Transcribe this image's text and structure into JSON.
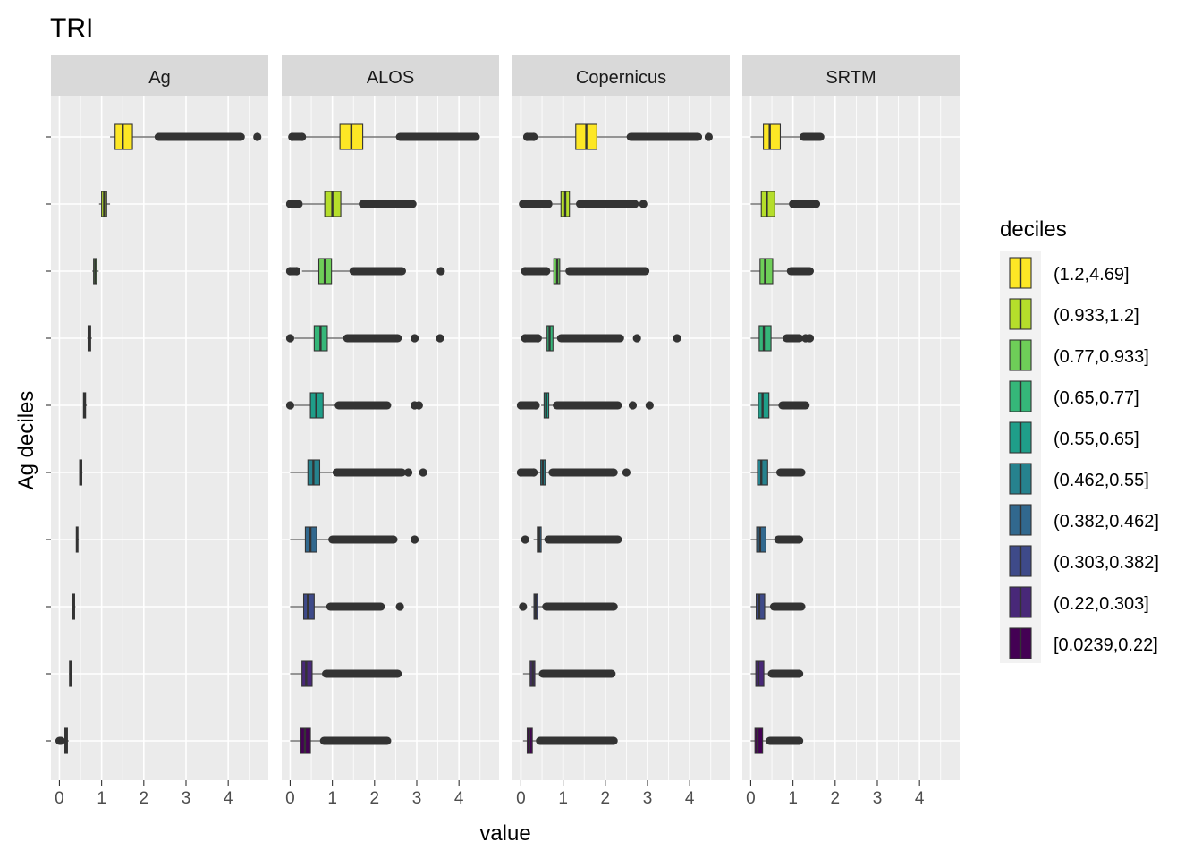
{
  "chart_data": {
    "type": "boxplot",
    "orientation": "horizontal",
    "title": "TRI",
    "xlabel": "value",
    "ylabel": "Ag deciles",
    "xlim": [
      -0.2,
      4.95
    ],
    "x_ticks": [
      0,
      1,
      2,
      3,
      4
    ],
    "legend": {
      "title": "deciles",
      "position": "right",
      "entries": [
        {
          "label": "(1.2,4.69]",
          "color": "#FDE725"
        },
        {
          "label": "(0.933,1.2]",
          "color": "#B5DE2B"
        },
        {
          "label": "(0.77,0.933]",
          "color": "#6ECE58"
        },
        {
          "label": "(0.65,0.77]",
          "color": "#35B779"
        },
        {
          "label": "(0.55,0.65]",
          "color": "#1F9E89"
        },
        {
          "label": "(0.462,0.55]",
          "color": "#26828E"
        },
        {
          "label": "(0.382,0.462]",
          "color": "#31688E"
        },
        {
          "label": "(0.303,0.382]",
          "color": "#3E4A89"
        },
        {
          "label": "(0.22,0.303]",
          "color": "#482878"
        },
        {
          "label": "[0.0239,0.22]",
          "color": "#440154"
        }
      ]
    },
    "facets": [
      {
        "name": "Ag",
        "boxes": [
          {
            "decile": "(1.2,4.69]",
            "whisker_low": 1.2,
            "q1": 1.32,
            "median": 1.5,
            "q3": 1.73,
            "whisker_high": 2.35,
            "outlier_band": [
              2.35,
              4.3
            ],
            "outliers": [
              4.69
            ]
          },
          {
            "decile": "(0.933,1.2]",
            "whisker_low": 0.94,
            "q1": 1.0,
            "median": 1.06,
            "q3": 1.12,
            "whisker_high": 1.2,
            "outlier_band": [],
            "outliers": []
          },
          {
            "decile": "(0.77,0.933]",
            "whisker_low": 0.78,
            "q1": 0.81,
            "median": 0.85,
            "q3": 0.89,
            "whisker_high": 0.93,
            "outlier_band": [],
            "outliers": []
          },
          {
            "decile": "(0.65,0.77]",
            "whisker_low": 0.66,
            "q1": 0.68,
            "median": 0.71,
            "q3": 0.74,
            "whisker_high": 0.77,
            "outlier_band": [],
            "outliers": []
          },
          {
            "decile": "(0.55,0.65]",
            "whisker_low": 0.56,
            "q1": 0.57,
            "median": 0.6,
            "q3": 0.62,
            "whisker_high": 0.65,
            "outlier_band": [],
            "outliers": []
          },
          {
            "decile": "(0.462,0.55]",
            "whisker_low": 0.47,
            "q1": 0.48,
            "median": 0.51,
            "q3": 0.53,
            "whisker_high": 0.55,
            "outlier_band": [],
            "outliers": []
          },
          {
            "decile": "(0.382,0.462]",
            "whisker_low": 0.39,
            "q1": 0.4,
            "median": 0.42,
            "q3": 0.44,
            "whisker_high": 0.46,
            "outlier_band": [],
            "outliers": []
          },
          {
            "decile": "(0.303,0.382]",
            "whisker_low": 0.31,
            "q1": 0.32,
            "median": 0.34,
            "q3": 0.36,
            "whisker_high": 0.38,
            "outlier_band": [],
            "outliers": []
          },
          {
            "decile": "(0.22,0.303]",
            "whisker_low": 0.23,
            "q1": 0.24,
            "median": 0.26,
            "q3": 0.28,
            "whisker_high": 0.3,
            "outlier_band": [],
            "outliers": []
          },
          {
            "decile": "[0.0239,0.22]",
            "whisker_low": 0.12,
            "q1": 0.13,
            "median": 0.16,
            "q3": 0.19,
            "whisker_high": 0.22,
            "outlier_band": [
              0.0,
              0.04
            ],
            "outliers": []
          }
        ]
      },
      {
        "name": "ALOS",
        "boxes": [
          {
            "decile": "(1.2,4.69]",
            "whisker_low": 0.3,
            "q1": 1.18,
            "median": 1.45,
            "q3": 1.72,
            "whisker_high": 2.6,
            "outlier_band": [
              2.6,
              4.4
            ],
            "outliers": [
              0.05,
              0.28
            ]
          },
          {
            "decile": "(0.933,1.2]",
            "whisker_low": 0.3,
            "q1": 0.82,
            "median": 1.0,
            "q3": 1.2,
            "whisker_high": 1.72,
            "outlier_band": [
              1.72,
              2.9
            ],
            "outliers": [
              0.0,
              0.2
            ]
          },
          {
            "decile": "(0.77,0.933]",
            "whisker_low": 0.28,
            "q1": 0.68,
            "median": 0.82,
            "q3": 0.98,
            "whisker_high": 1.5,
            "outlier_band": [
              1.5,
              2.65
            ],
            "outliers": [
              0.0,
              0.15,
              3.57
            ]
          },
          {
            "decile": "(0.65,0.77]",
            "whisker_low": 0.1,
            "q1": 0.57,
            "median": 0.72,
            "q3": 0.88,
            "whisker_high": 1.35,
            "outlier_band": [
              1.35,
              2.55
            ],
            "outliers": [
              0.0,
              2.95,
              3.55
            ]
          },
          {
            "decile": "(0.55,0.65]",
            "whisker_low": 0.1,
            "q1": 0.48,
            "median": 0.62,
            "q3": 0.78,
            "whisker_high": 1.15,
            "outlier_band": [
              1.15,
              2.3
            ],
            "outliers": [
              0.0,
              2.95,
              3.05
            ]
          },
          {
            "decile": "(0.462,0.55]",
            "whisker_low": 0.0,
            "q1": 0.42,
            "median": 0.55,
            "q3": 0.7,
            "whisker_high": 1.1,
            "outlier_band": [
              1.1,
              2.65
            ],
            "outliers": [
              2.8,
              3.15
            ]
          },
          {
            "decile": "(0.382,0.462]",
            "whisker_low": 0.0,
            "q1": 0.36,
            "median": 0.48,
            "q3": 0.63,
            "whisker_high": 1.0,
            "outlier_band": [
              1.0,
              2.45
            ],
            "outliers": [
              2.95
            ]
          },
          {
            "decile": "(0.303,0.382]",
            "whisker_low": 0.0,
            "q1": 0.32,
            "median": 0.42,
            "q3": 0.57,
            "whisker_high": 0.95,
            "outlier_band": [
              0.95,
              2.15
            ],
            "outliers": [
              2.6
            ]
          },
          {
            "decile": "(0.22,0.303]",
            "whisker_low": 0.0,
            "q1": 0.28,
            "median": 0.38,
            "q3": 0.52,
            "whisker_high": 0.85,
            "outlier_band": [
              0.85,
              2.55
            ],
            "outliers": []
          },
          {
            "decile": "[0.0239,0.22]",
            "whisker_low": 0.0,
            "q1": 0.25,
            "median": 0.35,
            "q3": 0.48,
            "whisker_high": 0.8,
            "outlier_band": [
              0.8,
              2.3
            ],
            "outliers": []
          }
        ]
      },
      {
        "name": "Copernicus",
        "boxes": [
          {
            "decile": "(1.2,4.69]",
            "whisker_low": 0.35,
            "q1": 1.3,
            "median": 1.55,
            "q3": 1.8,
            "whisker_high": 2.6,
            "outlier_band": [
              2.6,
              4.2
            ],
            "outliers": [
              0.15,
              0.3,
              4.45
            ]
          },
          {
            "decile": "(0.933,1.2]",
            "whisker_low": 0.7,
            "q1": 0.95,
            "median": 1.05,
            "q3": 1.15,
            "whisker_high": 1.4,
            "outlier_band": [
              1.4,
              2.7
            ],
            "outliers": [
              0.05,
              0.65,
              2.9
            ]
          },
          {
            "decile": "(0.77,0.933]",
            "whisker_low": 0.7,
            "q1": 0.78,
            "median": 0.86,
            "q3": 0.92,
            "whisker_high": 1.15,
            "outlier_band": [
              1.15,
              2.95
            ],
            "outliers": [
              0.1,
              0.6
            ]
          },
          {
            "decile": "(0.65,0.77]",
            "whisker_low": 0.5,
            "q1": 0.62,
            "median": 0.68,
            "q3": 0.76,
            "whisker_high": 0.95,
            "outlier_band": [
              0.95,
              2.35
            ],
            "outliers": [
              0.1,
              0.4,
              2.75,
              3.7
            ]
          },
          {
            "decile": "(0.55,0.65]",
            "whisker_low": 0.48,
            "q1": 0.55,
            "median": 0.6,
            "q3": 0.66,
            "whisker_high": 0.85,
            "outlier_band": [
              0.85,
              2.3
            ],
            "outliers": [
              0.0,
              0.35,
              2.65,
              3.05
            ]
          },
          {
            "decile": "(0.462,0.55]",
            "whisker_low": 0.4,
            "q1": 0.47,
            "median": 0.52,
            "q3": 0.58,
            "whisker_high": 0.75,
            "outlier_band": [
              0.75,
              2.2
            ],
            "outliers": [
              0.0,
              0.3,
              2.5
            ]
          },
          {
            "decile": "(0.382,0.462]",
            "whisker_low": 0.3,
            "q1": 0.39,
            "median": 0.43,
            "q3": 0.48,
            "whisker_high": 0.65,
            "outlier_band": [
              0.65,
              2.3
            ],
            "outliers": [
              0.1
            ]
          },
          {
            "decile": "(0.303,0.382]",
            "whisker_low": 0.25,
            "q1": 0.31,
            "median": 0.35,
            "q3": 0.4,
            "whisker_high": 0.6,
            "outlier_band": [
              0.6,
              2.2
            ],
            "outliers": [
              0.05
            ]
          },
          {
            "decile": "(0.22,0.303]",
            "whisker_low": 0.05,
            "q1": 0.22,
            "median": 0.28,
            "q3": 0.33,
            "whisker_high": 0.52,
            "outlier_band": [
              0.52,
              2.15
            ],
            "outliers": []
          },
          {
            "decile": "[0.0239,0.22]",
            "whisker_low": 0.05,
            "q1": 0.15,
            "median": 0.2,
            "q3": 0.27,
            "whisker_high": 0.45,
            "outlier_band": [
              0.45,
              2.2
            ],
            "outliers": []
          }
        ]
      },
      {
        "name": "SRTM",
        "boxes": [
          {
            "decile": "(1.2,4.69]",
            "whisker_low": 0.0,
            "q1": 0.3,
            "median": 0.45,
            "q3": 0.7,
            "whisker_high": 1.25,
            "outlier_band": [
              1.25,
              1.65
            ],
            "outliers": []
          },
          {
            "decile": "(0.933,1.2]",
            "whisker_low": 0.0,
            "q1": 0.25,
            "median": 0.38,
            "q3": 0.57,
            "whisker_high": 1.0,
            "outlier_band": [
              1.0,
              1.55
            ],
            "outliers": []
          },
          {
            "decile": "(0.77,0.933]",
            "whisker_low": 0.0,
            "q1": 0.22,
            "median": 0.34,
            "q3": 0.52,
            "whisker_high": 0.95,
            "outlier_band": [
              0.95,
              1.4
            ],
            "outliers": []
          },
          {
            "decile": "(0.65,0.77]",
            "whisker_low": 0.0,
            "q1": 0.2,
            "median": 0.31,
            "q3": 0.48,
            "whisker_high": 0.85,
            "outlier_band": [
              0.85,
              1.15
            ],
            "outliers": [
              1.3,
              1.4
            ]
          },
          {
            "decile": "(0.55,0.65]",
            "whisker_low": 0.0,
            "q1": 0.18,
            "median": 0.28,
            "q3": 0.43,
            "whisker_high": 0.75,
            "outlier_band": [
              0.75,
              1.3
            ],
            "outliers": []
          },
          {
            "decile": "(0.462,0.55]",
            "whisker_low": 0.0,
            "q1": 0.16,
            "median": 0.25,
            "q3": 0.4,
            "whisker_high": 0.7,
            "outlier_band": [
              0.7,
              1.2
            ],
            "outliers": []
          },
          {
            "decile": "(0.382,0.462]",
            "whisker_low": 0.0,
            "q1": 0.14,
            "median": 0.22,
            "q3": 0.36,
            "whisker_high": 0.65,
            "outlier_band": [
              0.65,
              1.15
            ],
            "outliers": []
          },
          {
            "decile": "(0.303,0.382]",
            "whisker_low": 0.0,
            "q1": 0.13,
            "median": 0.2,
            "q3": 0.33,
            "whisker_high": 0.55,
            "outlier_band": [
              0.55,
              1.2
            ],
            "outliers": []
          },
          {
            "decile": "(0.22,0.303]",
            "whisker_low": 0.0,
            "q1": 0.12,
            "median": 0.18,
            "q3": 0.31,
            "whisker_high": 0.5,
            "outlier_band": [
              0.5,
              1.15
            ],
            "outliers": []
          },
          {
            "decile": "[0.0239,0.22]",
            "whisker_low": 0.0,
            "q1": 0.1,
            "median": 0.16,
            "q3": 0.28,
            "whisker_high": 0.45,
            "outlier_band": [
              0.45,
              1.15
            ],
            "outliers": []
          }
        ]
      }
    ]
  }
}
